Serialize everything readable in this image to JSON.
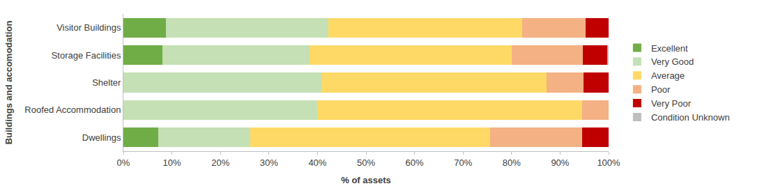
{
  "chart_data": {
    "type": "bar",
    "orientation": "horizontal",
    "stacked": true,
    "x_label": "% of assets",
    "y_label": "Buildings and accomodation",
    "categories": [
      "Visitor Buildings",
      "Storage Facilities",
      "Shelter",
      "Roofed Accommodation",
      "Dwellings"
    ],
    "series": [
      {
        "name": "Excellent",
        "color": "#70ad47",
        "values": [
          8.7,
          8.1,
          0,
          0,
          7.2
        ]
      },
      {
        "name": "Very Good",
        "color": "#c5e0b4",
        "values": [
          33.5,
          30.3,
          40.9,
          40.0,
          18.9
        ]
      },
      {
        "name": "Average",
        "color": "#ffd966",
        "values": [
          40.0,
          41.6,
          46.3,
          54.5,
          49.5
        ]
      },
      {
        "name": "Poor",
        "color": "#f4b183",
        "values": [
          13.0,
          14.7,
          7.6,
          5.5,
          18.9
        ]
      },
      {
        "name": "Very Poor",
        "color": "#c00000",
        "values": [
          4.8,
          5.0,
          5.2,
          0,
          5.5
        ]
      },
      {
        "name": "Condition Unknown",
        "color": "#bfbfbf",
        "values": [
          0,
          0.3,
          0,
          0,
          0
        ]
      }
    ],
    "xlim": [
      0,
      100
    ],
    "xticks": [
      {
        "value": 0,
        "label": "0%"
      },
      {
        "value": 10,
        "label": "10%"
      },
      {
        "value": 20,
        "label": "20%"
      },
      {
        "value": 30,
        "label": "30%"
      },
      {
        "value": 40,
        "label": "40%"
      },
      {
        "value": 50,
        "label": "50%"
      },
      {
        "value": 60,
        "label": "60%"
      },
      {
        "value": 70,
        "label": "70%"
      },
      {
        "value": 80,
        "label": "80%"
      },
      {
        "value": 90,
        "label": "90%"
      },
      {
        "value": 100,
        "label": "100%"
      }
    ],
    "grid": false,
    "legend": "right"
  }
}
